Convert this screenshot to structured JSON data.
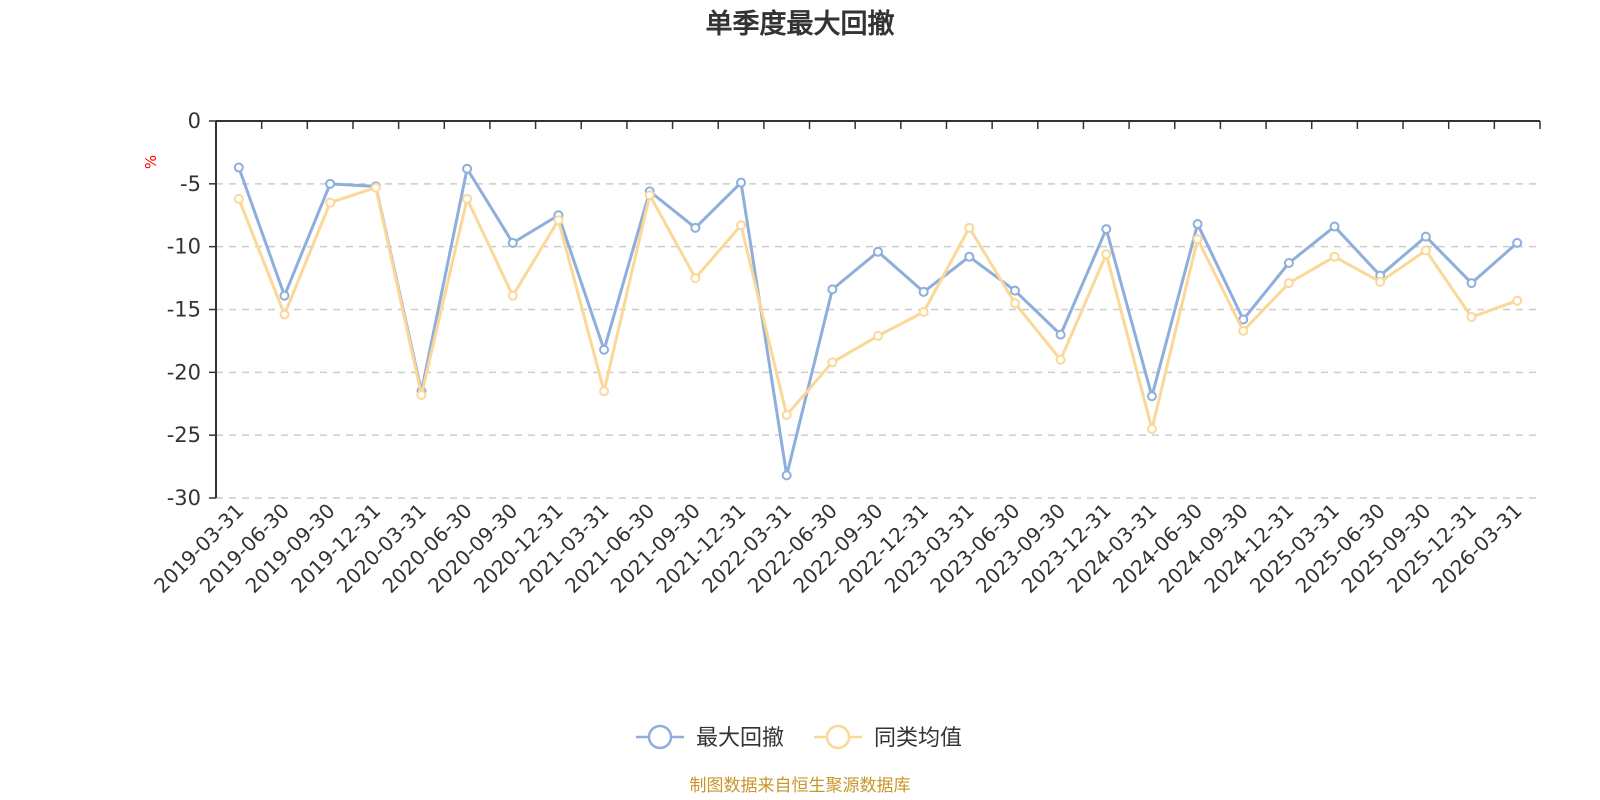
{
  "chart_data": {
    "type": "line",
    "title": "单季度最大回撤",
    "y_unit": "%",
    "xlabel": "",
    "ylabel": "",
    "ylim": [
      -30,
      0
    ],
    "y_ticks": [
      0,
      -5,
      -10,
      -15,
      -20,
      -25,
      -30
    ],
    "grid": true,
    "legend_position": "bottom",
    "categories": [
      "2019-03-31",
      "2019-06-30",
      "2019-09-30",
      "2019-12-31",
      "2020-03-31",
      "2020-06-30",
      "2020-09-30",
      "2020-12-31",
      "2021-03-31",
      "2021-06-30",
      "2021-09-30",
      "2021-12-31",
      "2022-03-31",
      "2022-06-30",
      "2022-09-30",
      "2022-12-31",
      "2023-03-31",
      "2023-06-30",
      "2023-09-30",
      "2023-12-31",
      "2024-03-31",
      "2024-06-30",
      "2024-09-30",
      "2024-12-31",
      "2025-03-31",
      "2025-06-30",
      "2025-09-30",
      "2025-12-31",
      "2026-03-31"
    ],
    "series": [
      {
        "name": "最大回撤",
        "color": "#8eaedc",
        "values": [
          -3.7,
          -13.9,
          -5.0,
          -5.2,
          -21.5,
          -3.8,
          -9.7,
          -7.5,
          -18.2,
          -5.6,
          -8.5,
          -4.9,
          -28.2,
          -13.4,
          -10.4,
          -13.6,
          -10.8,
          -13.5,
          -17.0,
          -8.6,
          -21.9,
          -8.2,
          -15.8,
          -11.3,
          -8.4,
          -12.3,
          -9.2,
          -12.9,
          -9.7
        ]
      },
      {
        "name": "同类均值",
        "color": "#fbd898",
        "values": [
          -6.2,
          -15.4,
          -6.5,
          -5.3,
          -21.8,
          -6.2,
          -13.9,
          -7.9,
          -21.5,
          -5.9,
          -12.5,
          -8.3,
          -23.4,
          -19.2,
          -17.1,
          -15.2,
          -8.5,
          -14.5,
          -19.0,
          -10.6,
          -24.5,
          -9.4,
          -16.7,
          -12.9,
          -10.8,
          -12.8,
          -10.3,
          -15.6,
          -14.3
        ]
      }
    ],
    "source_note": "制图数据来自恒生聚源数据库"
  }
}
